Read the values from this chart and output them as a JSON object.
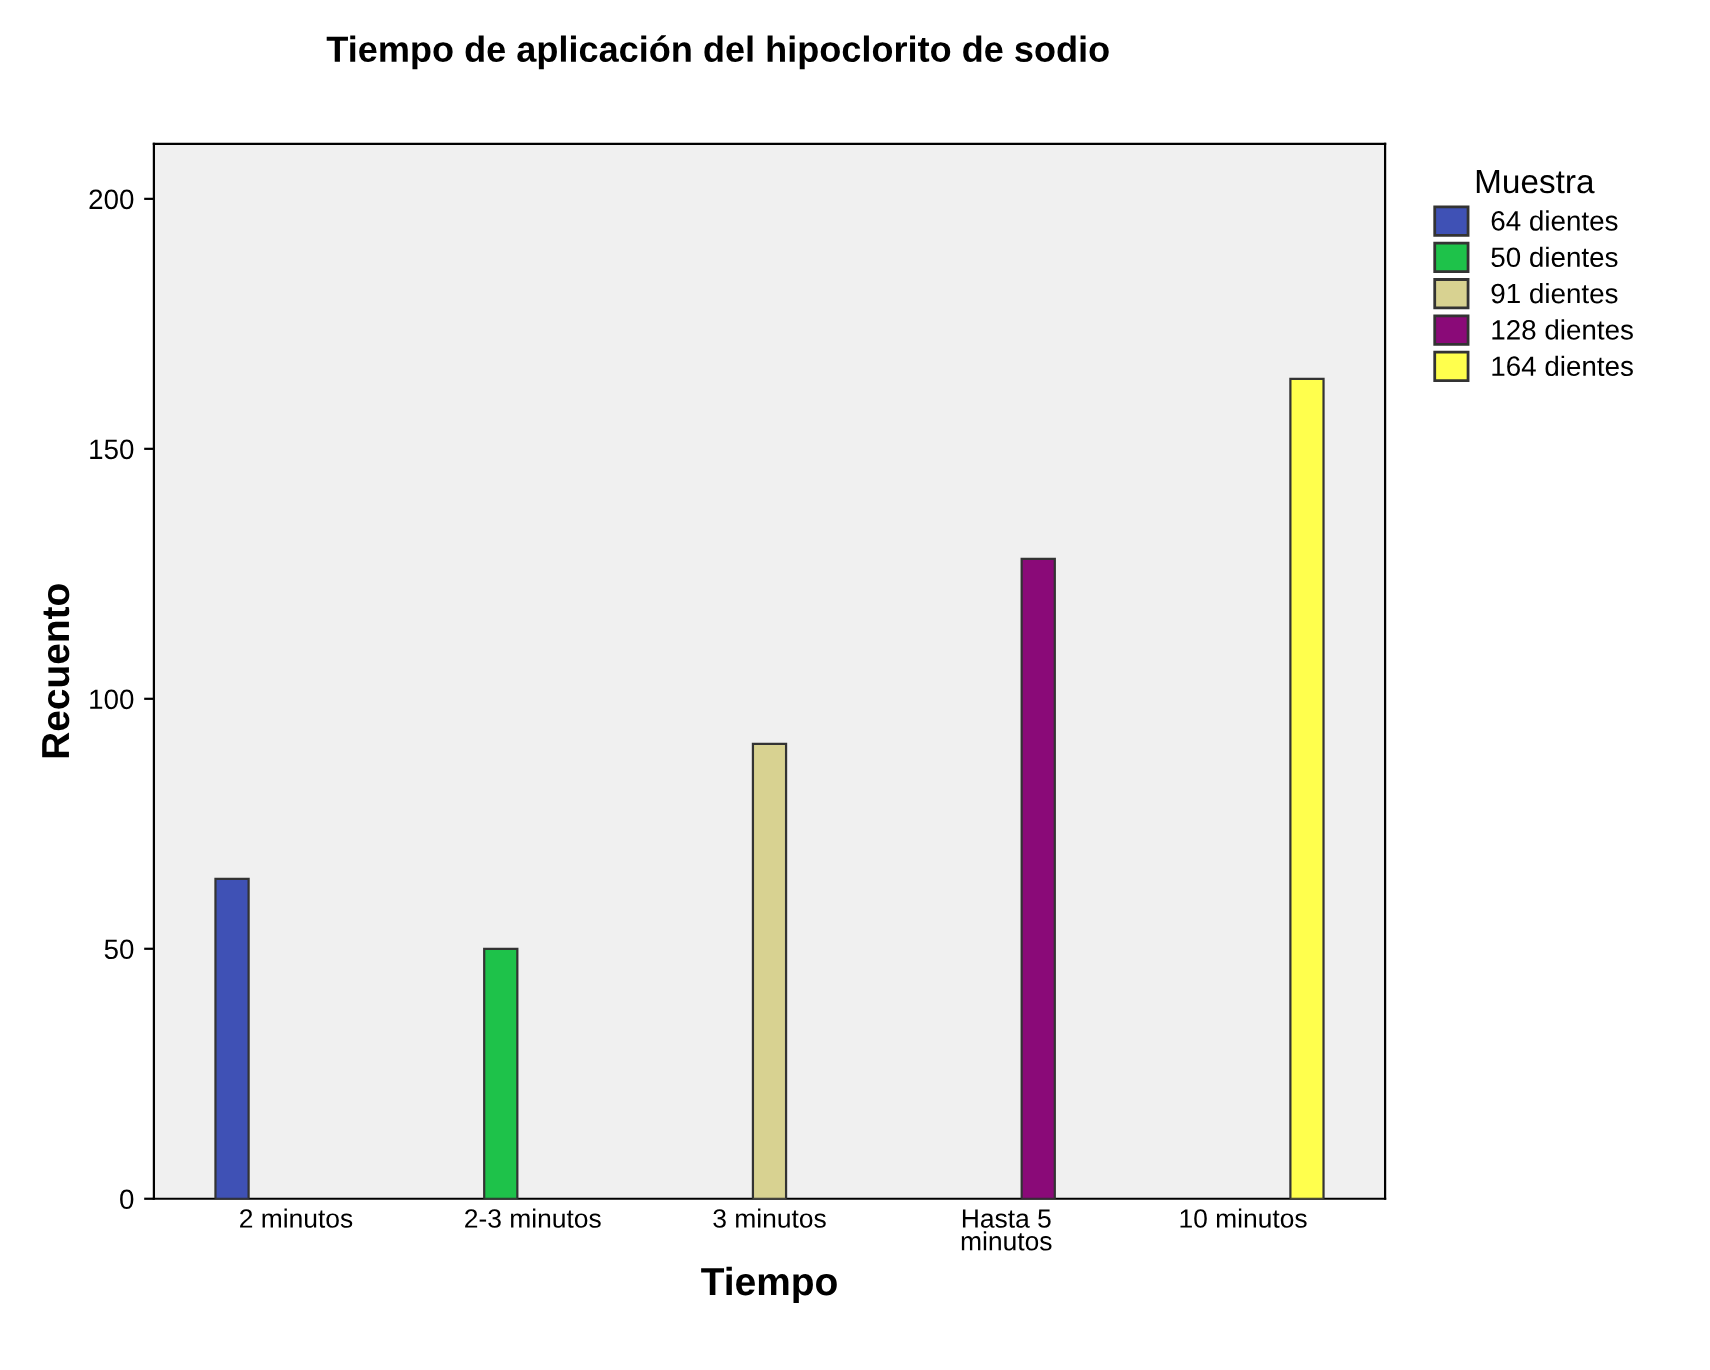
{
  "chart_data": {
    "type": "bar",
    "title": "Tiempo de aplicación del hipoclorito de sodio",
    "xlabel": "Tiempo",
    "ylabel": "Recuento",
    "legend_title": "Muestra",
    "categories": [
      "2 minutos",
      "2-3 minutos",
      "3 minutos",
      "Hasta 5\nminutos",
      "10 minutos"
    ],
    "series": [
      {
        "name": "64 dientes",
        "color": "#3f51b5",
        "values": [
          64,
          null,
          null,
          null,
          null
        ]
      },
      {
        "name": "50 dientes",
        "color": "#1ec24a",
        "values": [
          null,
          50,
          null,
          null,
          null
        ]
      },
      {
        "name": "91 dientes",
        "color": "#d8d291",
        "values": [
          null,
          null,
          91,
          null,
          null
        ]
      },
      {
        "name": "128 dientes",
        "color": "#8a0a78",
        "values": [
          null,
          null,
          null,
          128,
          null
        ]
      },
      {
        "name": "164 dientes",
        "color": "#ffff4d",
        "values": [
          null,
          null,
          null,
          null,
          164
        ]
      }
    ],
    "ylim": [
      0,
      211
    ],
    "yticks": [
      0,
      50,
      100,
      150,
      200
    ],
    "grid": false,
    "legend": "top right"
  }
}
